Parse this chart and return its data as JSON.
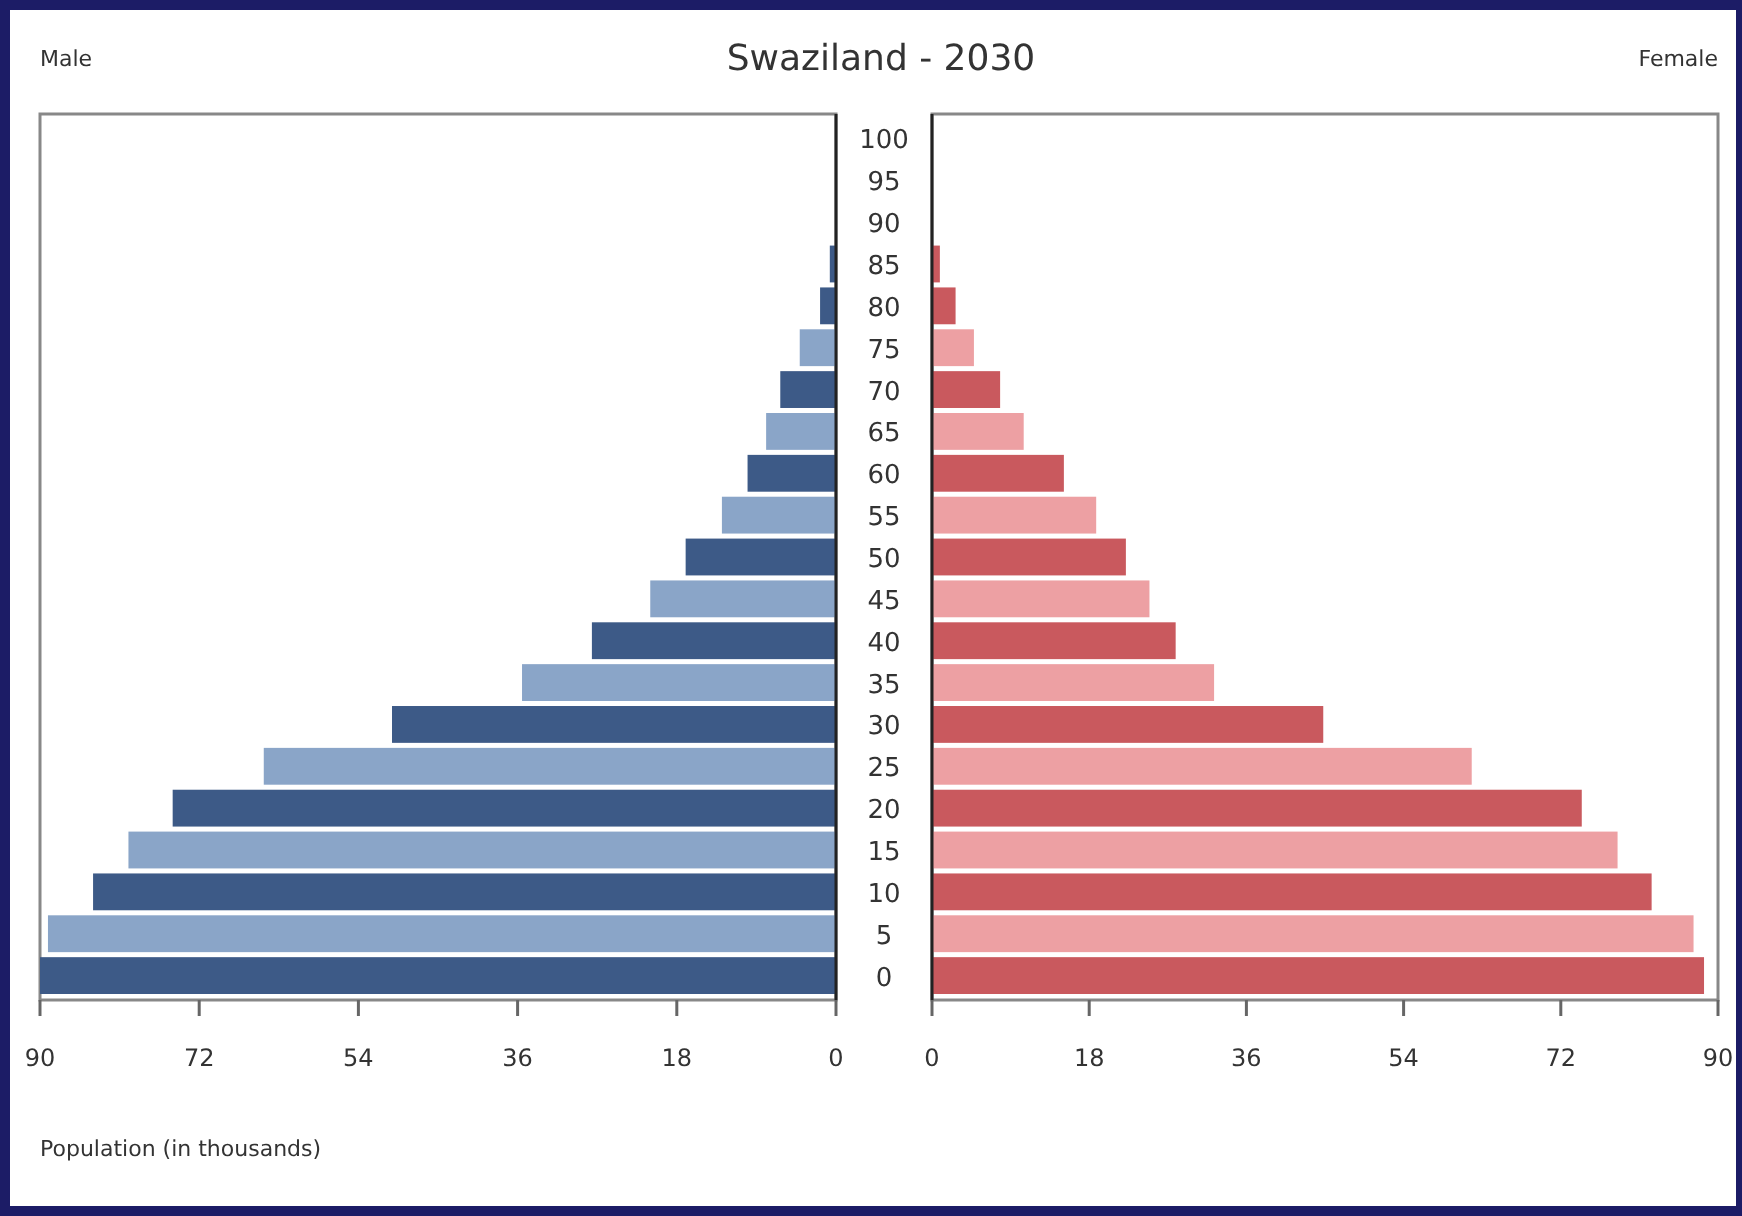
{
  "chart_data": [
    {
      "type": "bar",
      "orientation": "horizontal",
      "title": "Swaziland - 2030",
      "subtitle": "Male",
      "xlabel": "Population (in thousands)",
      "categories": [
        "100",
        "95",
        "90",
        "85",
        "80",
        "75",
        "70",
        "65",
        "60",
        "55",
        "50",
        "45",
        "40",
        "35",
        "30",
        "25",
        "20",
        "15",
        "10",
        "5",
        "0"
      ],
      "values": [
        0,
        0,
        null,
        0.7,
        1.8,
        4.1,
        6.3,
        7.9,
        10,
        12.9,
        17,
        21,
        27.6,
        35.5,
        50.2,
        64.7,
        75,
        80,
        84,
        89.1,
        90
      ],
      "colors": [
        "#8aa5c8",
        "#3d5a87",
        null,
        "#3d5a87",
        "#3d5a87",
        "#8aa5c8",
        "#3d5a87",
        "#8aa5c8",
        "#3d5a87",
        "#8aa5c8",
        "#3d5a87",
        "#8aa5c8",
        "#3d5a87",
        "#8aa5c8",
        "#3d5a87",
        "#8aa5c8",
        "#3d5a87",
        "#8aa5c8",
        "#3d5a87",
        "#8aa5c8",
        "#3d5a87"
      ],
      "xlim": [
        90,
        0
      ],
      "xticks": [
        90,
        72,
        54,
        36,
        18,
        0
      ]
    },
    {
      "type": "bar",
      "orientation": "horizontal",
      "subtitle": "Female",
      "tick_labels": "x",
      "categories": [
        "100",
        "95",
        "90",
        "85",
        "80",
        "75",
        "70",
        "65",
        "60",
        "55",
        "50",
        "45",
        "40",
        "35",
        "30",
        "25",
        "20",
        "15",
        "10",
        "5",
        "0"
      ],
      "values": [
        0,
        0,
        null,
        0.9,
        2.7,
        4.8,
        7.8,
        10.5,
        15.1,
        18.8,
        22.2,
        24.9,
        27.9,
        32.3,
        44.8,
        61.8,
        74.4,
        78.5,
        82.4,
        87.2,
        88.4
      ],
      "colors": [
        "#eda0a3",
        "#c9595e",
        null,
        "#c9595e",
        "#c9595e",
        "#eda0a3",
        "#c9595e",
        "#eda0a3",
        "#c9595e",
        "#eda0a3",
        "#c9595e",
        "#eda0a3",
        "#c9595e",
        "#eda0a3",
        "#c9595e",
        "#eda0a3",
        "#c9595e",
        "#eda0a3",
        "#c9595e",
        "#eda0a3",
        "#c9595e"
      ],
      "xlim": [
        0,
        90
      ],
      "xticks": [
        0,
        18,
        36,
        54,
        72,
        90
      ]
    }
  ]
}
